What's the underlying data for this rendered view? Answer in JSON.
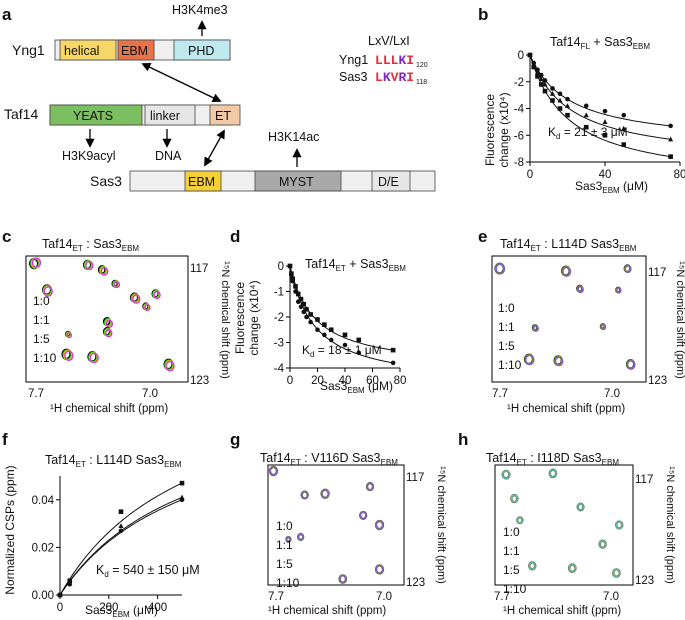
{
  "panels": {
    "a": "a",
    "b": "b",
    "c": "c",
    "d": "d",
    "e": "e",
    "f": "f",
    "g": "g",
    "h": "h"
  },
  "colors": {
    "helical": "#f7d767",
    "ebm": "#e8734a",
    "phd": "#bfe8ef",
    "yeats": "#7cbf60",
    "linker": "#e6e6e6",
    "et": "#f1c9a4",
    "ebm_sas3": "#f5cf3a",
    "myst": "#a9a9a9",
    "bar": "#efefef",
    "black": "#000000",
    "green": "#22c11f",
    "gold": "#f2b90f",
    "magenta": "#cc33e6",
    "orange": "#f25a24",
    "purple": "#7b5fd6",
    "cyan": "#4fbfc0",
    "red": "#e0303a",
    "violet": "#7a2cc4"
  },
  "panel_a": {
    "yng1_label": "Yng1",
    "taf14_label": "Taf14",
    "sas3_label": "Sas3",
    "yng1_domains": [
      "helical",
      "EBM",
      "PHD"
    ],
    "taf14_domains": [
      "YEATS",
      "linker",
      "ET"
    ],
    "sas3_domains": [
      "EBM",
      "MYST",
      "D/E"
    ],
    "h3k4me3": "H3K4me3",
    "h3k9acyl": "H3K9acyl",
    "dna": "DNA",
    "h3k14ac": "H3K14ac",
    "motif_title": "LxV/LxI",
    "motif_yng1": {
      "protein": "Yng1",
      "seq": [
        "L",
        "L",
        "L",
        "K",
        "I"
      ],
      "num": "120"
    },
    "motif_sas3": {
      "protein": "Sas3",
      "seq": [
        "L",
        "K",
        "V",
        "R",
        "I"
      ],
      "num": "118"
    }
  },
  "panel_b": {
    "title": "Taf14",
    "title_sub": "FL",
    "title_rest": " + Sas3",
    "title_sub2": "EBM",
    "ylabel1": "Fluorescence",
    "ylabel2": "change (x10⁴)",
    "xlabel": "Sas3",
    "xlabel_sub": "EBM",
    "xlabel_unit": " (μM)",
    "kd": "K",
    "kd_sub": "d",
    "kd_val": " = 21 ± 3 μM",
    "xticks": [
      "0",
      "40",
      "80"
    ],
    "yticks": [
      "0",
      "-2",
      "-4",
      "-6",
      "-8"
    ]
  },
  "panel_c": {
    "title": "Taf14",
    "title_sub": "ET",
    "title_rest": " : Sas3",
    "title_sub2": "EBM",
    "ratios": [
      "1:0",
      "1:1",
      "1:5",
      "1:10"
    ],
    "xticks": [
      "7.7",
      "7.0"
    ],
    "yticks": [
      "117",
      "123"
    ],
    "xlabel": "¹H chemical shift (ppm)",
    "ylabel": "¹⁵N chemical shift (ppm)"
  },
  "panel_d": {
    "title": "Taf14",
    "title_sub": "ET",
    "title_rest": " + Sas3",
    "title_sub2": "EBM",
    "ylabel1": "Fluorescence",
    "ylabel2": "change (x10⁴)",
    "xlabel": "Sas3",
    "xlabel_sub": "EBM",
    "xlabel_unit": " (μM)",
    "kd": "K",
    "kd_sub": "d",
    "kd_val": " = 18 ± 1 μM",
    "xticks": [
      "0",
      "20",
      "40",
      "60",
      "80"
    ],
    "yticks": [
      "0",
      "-1",
      "-2",
      "-3",
      "-4"
    ]
  },
  "panel_e": {
    "title": "Taf14",
    "title_sub": "ET",
    "title_rest": " : L114D Sas3",
    "title_sub2": "EBM",
    "ratios": [
      "1:0",
      "1:1",
      "1:5",
      "1:10"
    ],
    "xticks": [
      "7.7",
      "7.0"
    ],
    "yticks": [
      "117",
      "123"
    ],
    "xlabel": "¹H chemical shift (ppm)",
    "ylabel": "¹⁵N chemical shift (ppm)"
  },
  "panel_f": {
    "title": "Taf14",
    "title_sub": "ET",
    "title_rest": " : L114D Sas3",
    "title_sub2": "EBM",
    "ylabel": "Normalized CSPs (ppm)",
    "xlabel": "Sas3",
    "xlabel_sub": "EBM",
    "xlabel_unit": " (μM)",
    "kd": "K",
    "kd_sub": "d",
    "kd_val": " = 540 ± 150 μM",
    "xticks": [
      "0",
      "200",
      "400"
    ],
    "yticks": [
      "0.00",
      "0.02",
      "0.04"
    ]
  },
  "panel_g": {
    "title": "Taf14",
    "title_sub": "ET",
    "title_rest": " : V116D Sas3",
    "title_sub2": "EBM",
    "ratios": [
      "1:0",
      "1:1",
      "1:5",
      "1:10"
    ],
    "xticks": [
      "7.7",
      "7.0"
    ],
    "yticks": [
      "117",
      "123"
    ],
    "xlabel": "¹H chemical shift (ppm)",
    "ylabel": "¹⁵N chemical shift (ppm)"
  },
  "panel_h": {
    "title": "Taf14",
    "title_sub": "ET",
    "title_rest": " : I118D Sas3",
    "title_sub2": "EBM",
    "ratios": [
      "1:0",
      "1:1",
      "1:5",
      "1:10"
    ],
    "xticks": [
      "7.7",
      "7.0"
    ],
    "yticks": [
      "117",
      "123"
    ],
    "xlabel": "¹H chemical shift (ppm)",
    "ylabel": "¹⁵N chemical shift (ppm)"
  },
  "chart_data": [
    {
      "type": "scatter",
      "panel": "b",
      "xlabel": "Sas3 EBM (μM)",
      "ylabel": "Fluorescence change (x10⁴)",
      "xlim": [
        0,
        80
      ],
      "ylim": [
        -8,
        0
      ],
      "series": [
        {
          "name": "circles",
          "marker": "circle",
          "x": [
            0,
            2,
            4,
            6,
            8,
            12,
            16,
            20,
            30,
            40,
            50,
            75
          ],
          "y": [
            0,
            -0.6,
            -1.1,
            -1.5,
            -1.9,
            -2.5,
            -2.9,
            -3.3,
            -3.8,
            -4.2,
            -4.5,
            -5.3
          ]
        },
        {
          "name": "triangles",
          "marker": "triangle",
          "x": [
            0,
            2,
            4,
            6,
            8,
            12,
            16,
            20,
            30,
            40,
            50,
            75
          ],
          "y": [
            0,
            -0.7,
            -1.3,
            -1.8,
            -2.2,
            -2.9,
            -3.4,
            -3.8,
            -4.5,
            -5.0,
            -5.5,
            -6.3
          ]
        },
        {
          "name": "squares",
          "marker": "square",
          "x": [
            0,
            2,
            4,
            6,
            8,
            12,
            16,
            20,
            30,
            40,
            50,
            75
          ],
          "y": [
            0,
            -0.9,
            -1.6,
            -2.2,
            -2.7,
            -3.4,
            -4.0,
            -4.5,
            -5.4,
            -6.0,
            -6.7,
            -7.6
          ]
        }
      ]
    },
    {
      "type": "scatter",
      "panel": "d",
      "xlabel": "Sas3 EBM (μM)",
      "ylabel": "Fluorescence change (x10⁴)",
      "xlim": [
        0,
        80
      ],
      "ylim": [
        -4,
        0
      ],
      "series": [
        {
          "name": "circles",
          "marker": "circle",
          "x": [
            0,
            1,
            2,
            4,
            6,
            8,
            10,
            12,
            15,
            20,
            25,
            30,
            40,
            50,
            75
          ],
          "y": [
            0,
            -0.35,
            -0.6,
            -1.0,
            -1.4,
            -1.6,
            -1.8,
            -2.0,
            -2.2,
            -2.5,
            -2.7,
            -2.9,
            -3.1,
            -3.4,
            -3.8
          ]
        },
        {
          "name": "squares",
          "marker": "square",
          "x": [
            0,
            1,
            2,
            4,
            6,
            8,
            10,
            12,
            15,
            20,
            25,
            30,
            40,
            50,
            75
          ],
          "y": [
            0,
            -0.3,
            -0.5,
            -0.8,
            -1.1,
            -1.3,
            -1.5,
            -1.7,
            -1.9,
            -2.1,
            -2.3,
            -2.5,
            -2.7,
            -2.9,
            -3.3
          ]
        }
      ]
    },
    {
      "type": "scatter",
      "panel": "f",
      "xlabel": "Sas3 EBM (μM)",
      "ylabel": "Normalized CSPs (ppm)",
      "xlim": [
        0,
        500
      ],
      "ylim": [
        0,
        0.05
      ],
      "series": [
        {
          "name": "squares",
          "marker": "square",
          "x": [
            0,
            40,
            250,
            500
          ],
          "y": [
            0,
            0.006,
            0.035,
            0.047
          ]
        },
        {
          "name": "triangles",
          "marker": "triangle",
          "x": [
            0,
            40,
            250,
            500
          ],
          "y": [
            0,
            0.005,
            0.029,
            0.041
          ]
        },
        {
          "name": "circles",
          "marker": "circle",
          "x": [
            0,
            40,
            250,
            500
          ],
          "y": [
            0,
            0.0045,
            0.027,
            0.04
          ]
        }
      ]
    }
  ]
}
